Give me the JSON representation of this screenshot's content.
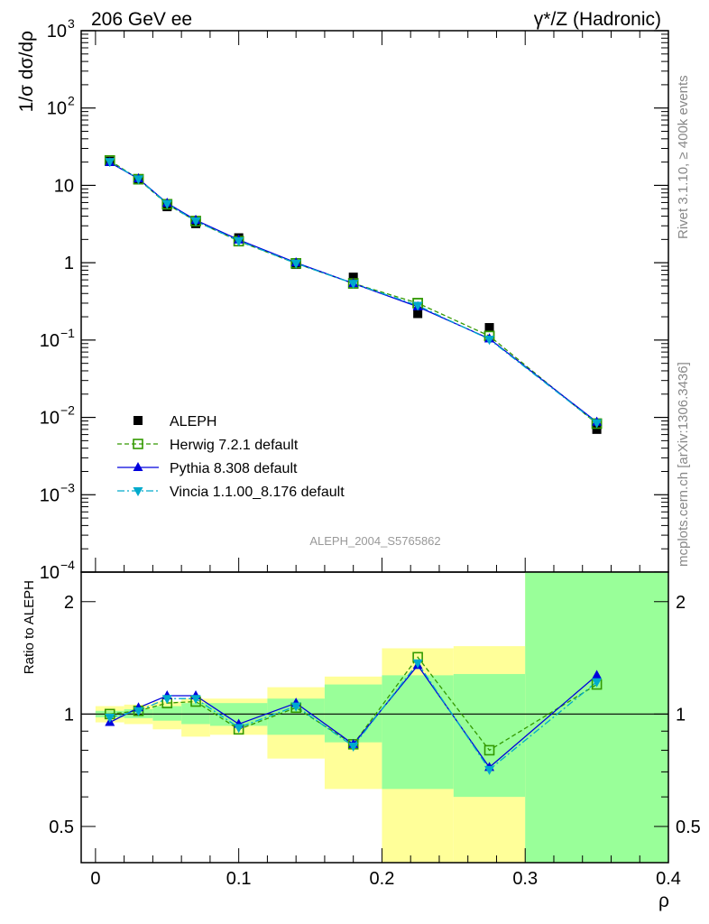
{
  "header": {
    "left_title": "206 GeV ee",
    "right_title": "γ*/Z (Hadronic)",
    "side_label_top": "Rivet 3.1.10, ≥ 400k events",
    "side_label_bottom": "mcplots.cern.ch [arXiv:1306.3436]",
    "analysis_id": "ALEPH_2004_S5765862"
  },
  "chart_data": [
    {
      "type": "line",
      "scale": "log",
      "ylabel": "1/σ dσ/dρ",
      "ylim": [
        0.0001,
        1000
      ],
      "xlim": [
        -0.01,
        0.4
      ],
      "yticks": [
        {
          "value": 1000,
          "label": "10",
          "sup": "3"
        },
        {
          "value": 100,
          "label": "10",
          "sup": "2"
        },
        {
          "value": 10,
          "label": "10",
          "sup": ""
        },
        {
          "value": 1,
          "label": "1",
          "sup": ""
        },
        {
          "value": 0.1,
          "label": "10",
          "sup": "−1"
        },
        {
          "value": 0.01,
          "label": "10",
          "sup": "−2"
        },
        {
          "value": 0.001,
          "label": "10",
          "sup": "−3"
        },
        {
          "value": 0.0001,
          "label": "10",
          "sup": "−4"
        }
      ],
      "x": [
        0.01,
        0.03,
        0.05,
        0.07,
        0.1,
        0.14,
        0.18,
        0.225,
        0.275,
        0.35
      ],
      "data": {
        "name": "ALEPH",
        "values": [
          20.5,
          11.8,
          5.3,
          3.2,
          2.1,
          0.95,
          0.65,
          0.22,
          0.145,
          0.007
        ]
      },
      "series": [
        {
          "name": "Herwig 7.2.1 default",
          "color": "#339900",
          "marker": "open-square",
          "dash": "dashed",
          "values": [
            21.0,
            12.0,
            5.7,
            3.45,
            1.9,
            0.98,
            0.54,
            0.3,
            0.113,
            0.0083
          ]
        },
        {
          "name": "Pythia 8.308 default",
          "color": "#0000dd",
          "marker": "triangle-up",
          "dash": "solid",
          "values": [
            19.8,
            12.2,
            5.9,
            3.55,
            1.98,
            1.0,
            0.54,
            0.27,
            0.104,
            0.0087
          ]
        },
        {
          "name": "Vincia 1.1.00_8.176 default",
          "color": "#00aacc",
          "marker": "triangle-down",
          "dash": "dashdot",
          "values": [
            20.3,
            12.1,
            5.8,
            3.45,
            1.92,
            0.98,
            0.54,
            0.28,
            0.102,
            0.0085
          ]
        }
      ]
    },
    {
      "type": "line",
      "scale": "log",
      "ylabel": "Ratio to ALEPH",
      "xlabel": "ρ",
      "ylim": [
        0.4,
        2.4
      ],
      "xlim": [
        -0.01,
        0.4
      ],
      "yticks": [
        {
          "value": 0.5,
          "label": "0.5"
        },
        {
          "value": 1,
          "label": "1"
        },
        {
          "value": 2,
          "label": "2"
        }
      ],
      "xticks": [
        {
          "value": 0,
          "label": "0"
        },
        {
          "value": 0.1,
          "label": "0.1"
        },
        {
          "value": 0.2,
          "label": "0.2"
        },
        {
          "value": 0.3,
          "label": "0.3"
        },
        {
          "value": 0.4,
          "label": "0.4"
        }
      ],
      "bands": [
        {
          "x0": 0.0,
          "x1": 0.02,
          "stat": [
            0.98,
            1.02
          ],
          "total": [
            0.95,
            1.05
          ]
        },
        {
          "x0": 0.02,
          "x1": 0.04,
          "stat": [
            0.975,
            1.03
          ],
          "total": [
            0.94,
            1.06
          ]
        },
        {
          "x0": 0.04,
          "x1": 0.06,
          "stat": [
            0.96,
            1.05
          ],
          "total": [
            0.91,
            1.08
          ]
        },
        {
          "x0": 0.06,
          "x1": 0.08,
          "stat": [
            0.94,
            1.07
          ],
          "total": [
            0.87,
            1.1
          ]
        },
        {
          "x0": 0.08,
          "x1": 0.12,
          "stat": [
            0.93,
            1.07
          ],
          "total": [
            0.88,
            1.1
          ]
        },
        {
          "x0": 0.12,
          "x1": 0.16,
          "stat": [
            0.88,
            1.1
          ],
          "total": [
            0.76,
            1.18
          ]
        },
        {
          "x0": 0.16,
          "x1": 0.2,
          "stat": [
            0.84,
            1.2
          ],
          "total": [
            0.63,
            1.26
          ]
        },
        {
          "x0": 0.2,
          "x1": 0.25,
          "stat": [
            0.63,
            1.27
          ],
          "total": [
            0.4,
            1.5
          ]
        },
        {
          "x0": 0.25,
          "x1": 0.3,
          "stat": [
            0.6,
            1.28
          ],
          "total": [
            0.4,
            1.52
          ]
        },
        {
          "x0": 0.3,
          "x1": 0.4,
          "stat": [
            0.4,
            2.4
          ],
          "total": [
            0.4,
            2.4
          ]
        }
      ],
      "series": [
        {
          "name": "Herwig 7.2.1 default",
          "color": "#339900",
          "marker": "open-square",
          "dash": "dashed",
          "values": [
            1.0,
            1.02,
            1.07,
            1.08,
            0.91,
            1.04,
            0.83,
            1.42,
            0.8,
            1.2
          ]
        },
        {
          "name": "Pythia 8.308 default",
          "color": "#0000dd",
          "marker": "triangle-up",
          "dash": "solid",
          "values": [
            0.95,
            1.04,
            1.12,
            1.12,
            0.94,
            1.07,
            0.83,
            1.35,
            0.72,
            1.27
          ]
        },
        {
          "name": "Vincia 1.1.00_8.176 default",
          "color": "#00aacc",
          "marker": "triangle-down",
          "dash": "dashdot",
          "values": [
            0.98,
            1.02,
            1.1,
            1.1,
            0.92,
            1.05,
            0.82,
            1.37,
            0.71,
            1.22
          ]
        }
      ]
    }
  ],
  "colors": {
    "stat_band": "#99ff99",
    "total_band": "#ffff99",
    "data_marker": "#000000"
  }
}
